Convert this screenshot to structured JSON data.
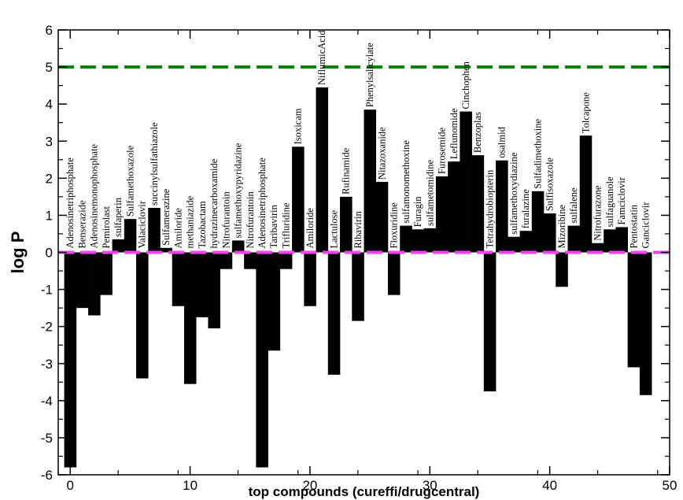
{
  "chart_data": {
    "type": "bar",
    "xlabel": "top compounds (cureffi/drugcentral)",
    "ylabel": "log P",
    "xlim": [
      -1,
      50
    ],
    "ylim": [
      -6,
      6
    ],
    "xticks": [
      0,
      10,
      20,
      30,
      40,
      50
    ],
    "yticks": [
      -6,
      -5,
      -4,
      -3,
      -2,
      -1,
      0,
      1,
      2,
      3,
      4,
      5,
      6
    ],
    "grid": false,
    "reference_lines": [
      {
        "y": 5,
        "color": "#008000",
        "style": "dashed"
      },
      {
        "y": 0,
        "color": "#ee44ee",
        "style": "dashed"
      }
    ],
    "bar_color": "#000000",
    "x": [
      0,
      1,
      2,
      3,
      4,
      5,
      6,
      7,
      8,
      9,
      10,
      11,
      12,
      13,
      14,
      15,
      16,
      17,
      18,
      19,
      20,
      21,
      22,
      23,
      24,
      25,
      26,
      27,
      28,
      29,
      30,
      31,
      32,
      33,
      34,
      35,
      36,
      37,
      38,
      39,
      40,
      41,
      42,
      43,
      44,
      45,
      46,
      47,
      48
    ],
    "categories": [
      "Adenosinetriphosphate",
      "Benserazide",
      "Adenosinemonophosphate",
      "Pemirolast",
      "sulfaperin",
      "Sulfamethoxazole",
      "Valaciclovir",
      "succinylsulfathiazole",
      "Sulfamerazine",
      "Amiloride",
      "methaniazide",
      "Tazobactam",
      "hydrazinecarboxamide",
      "Nitrofurantoin",
      "sulfamethoxypyridazine",
      "Nitrofurantoin",
      "Adenosinetriphosphate",
      "Taribavirin",
      "Trifluridine",
      "Isoxicam",
      "Amiloride",
      "NiflumicAcid",
      "Lactulose",
      "Rufinamide",
      "Ribavirin",
      "Phenylsalicylate",
      "Nitazoxanide",
      "Floxuridine",
      "sulfamonomethoxine",
      "Furagin",
      "sulfametomidine",
      "Furosemide",
      "Leflunomide",
      "Cinchophen",
      "Benzoplas",
      "Tetrahydrobiopterin",
      "osalmid",
      "sulfamethoxydiazine",
      "furalazine",
      "Sulfadimethoxine",
      "Sulfisoxazole",
      "Mizoribine",
      "sulfalene",
      "Tolcapone",
      "Nitrofurazone",
      "sulfaguanole",
      "Famciclovir",
      "Pentostatin",
      "Ganciclovir"
    ],
    "values": [
      -5.8,
      -1.5,
      -1.7,
      -1.15,
      0.35,
      0.9,
      -3.4,
      1.2,
      0.12,
      -1.45,
      -3.55,
      -1.75,
      -2.05,
      -0.45,
      0.32,
      -0.45,
      -5.8,
      -2.65,
      -0.45,
      2.85,
      -1.45,
      4.45,
      -3.3,
      1.5,
      -1.85,
      3.85,
      1.9,
      -1.15,
      0.72,
      0.62,
      0.65,
      2.05,
      2.45,
      3.8,
      2.62,
      -3.75,
      2.48,
      0.42,
      0.58,
      1.65,
      1.05,
      -0.93,
      0.72,
      3.15,
      0.25,
      0.62,
      0.68,
      -3.1,
      -3.85
    ]
  }
}
